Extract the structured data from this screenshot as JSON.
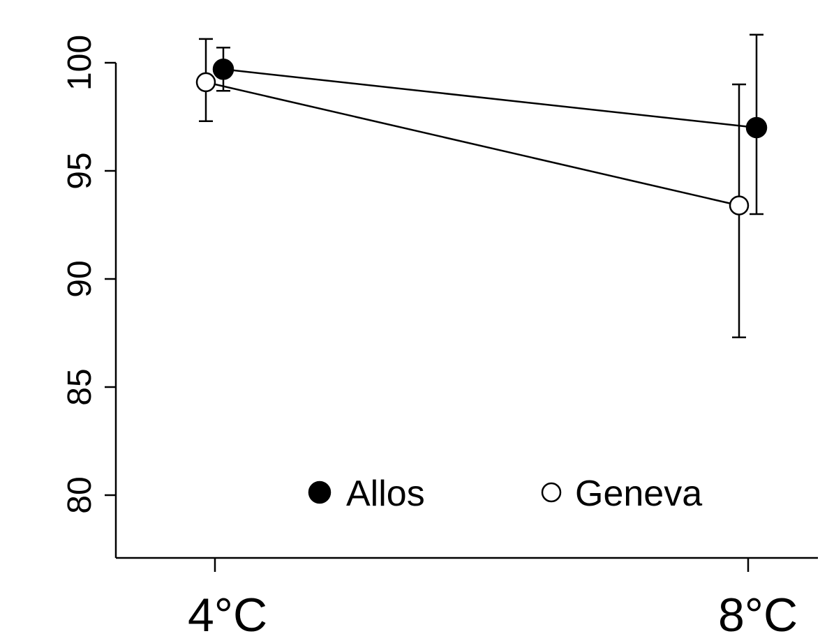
{
  "chart_data": {
    "type": "line",
    "title": "",
    "xlabel": "",
    "ylabel": "",
    "categories": [
      "4°C",
      "8°C"
    ],
    "ylim": [
      77,
      100
    ],
    "yticks": [
      80,
      85,
      90,
      95,
      100
    ],
    "grid": false,
    "legend_position": "bottom-center",
    "series": [
      {
        "name": "Allos",
        "marker": "filled-circle",
        "color": "#000000",
        "values": [
          99.7,
          97.0
        ],
        "err_low": [
          98.7,
          93.0
        ],
        "err_high": [
          100.7,
          101.3
        ]
      },
      {
        "name": "Geneva",
        "marker": "open-circle",
        "color": "#000000",
        "values": [
          99.1,
          93.4
        ],
        "err_low": [
          97.3,
          87.3
        ],
        "err_high": [
          101.1,
          99.0
        ]
      }
    ]
  }
}
